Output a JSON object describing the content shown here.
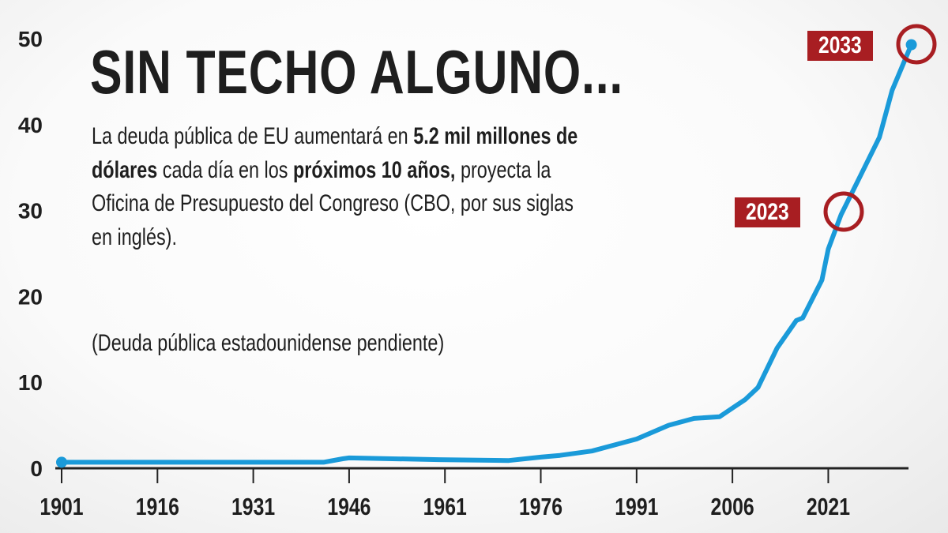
{
  "title": "SIN TECHO ALGUNO...",
  "description": [
    {
      "text": "La deuda pública de EU aumentará en ",
      "bold": false
    },
    {
      "text": "5.2 mil millones de dólares",
      "bold": true
    },
    {
      "text": " cada día en los ",
      "bold": false
    },
    {
      "text": "próximos 10 años,",
      "bold": true
    },
    {
      "text": " proyecta la Oficina de Presupuesto del Congreso (CBO, por sus siglas en inglés).",
      "bold": false
    }
  ],
  "unit_note": "(Deuda pública estadounidense pendiente)",
  "annotations": {
    "a2023": "2023",
    "a2033": "2033"
  },
  "colors": {
    "line": "#1a9ad9",
    "highlight": "#a81e22",
    "text": "#1e1e1e"
  },
  "chart_data": {
    "type": "line",
    "title": "SIN TECHO ALGUNO...",
    "xlabel": "",
    "ylabel": "",
    "xlim": [
      1901,
      2035
    ],
    "ylim": [
      0,
      50
    ],
    "x_ticks": [
      "1901",
      "1916",
      "1931",
      "1946",
      "1961",
      "1976",
      "1991",
      "2006",
      "2021"
    ],
    "y_ticks": [
      "0",
      "10",
      "20",
      "30",
      "40",
      "50"
    ],
    "grid": false,
    "series": [
      {
        "x": [
          1901,
          1942,
          1945,
          1946,
          1960,
          1971,
          1976,
          1979,
          1984,
          1988,
          1991,
          1996,
          2000,
          2004,
          2006,
          2008,
          2010,
          2013,
          2016,
          2017,
          2020,
          2021,
          2023,
          2026,
          2029,
          2031,
          2034
        ],
        "y": [
          0.7,
          0.7,
          1.1,
          1.2,
          1.0,
          0.9,
          1.3,
          1.5,
          2.0,
          2.8,
          3.4,
          5.0,
          5.8,
          6.0,
          7.0,
          8.0,
          9.4,
          14.0,
          17.2,
          17.5,
          21.9,
          25.5,
          29.5,
          34.0,
          38.5,
          44.0,
          49.3
        ]
      }
    ],
    "highlights": [
      {
        "x": 2023,
        "label": "2023"
      },
      {
        "x": 2034,
        "label": "2033"
      }
    ]
  }
}
